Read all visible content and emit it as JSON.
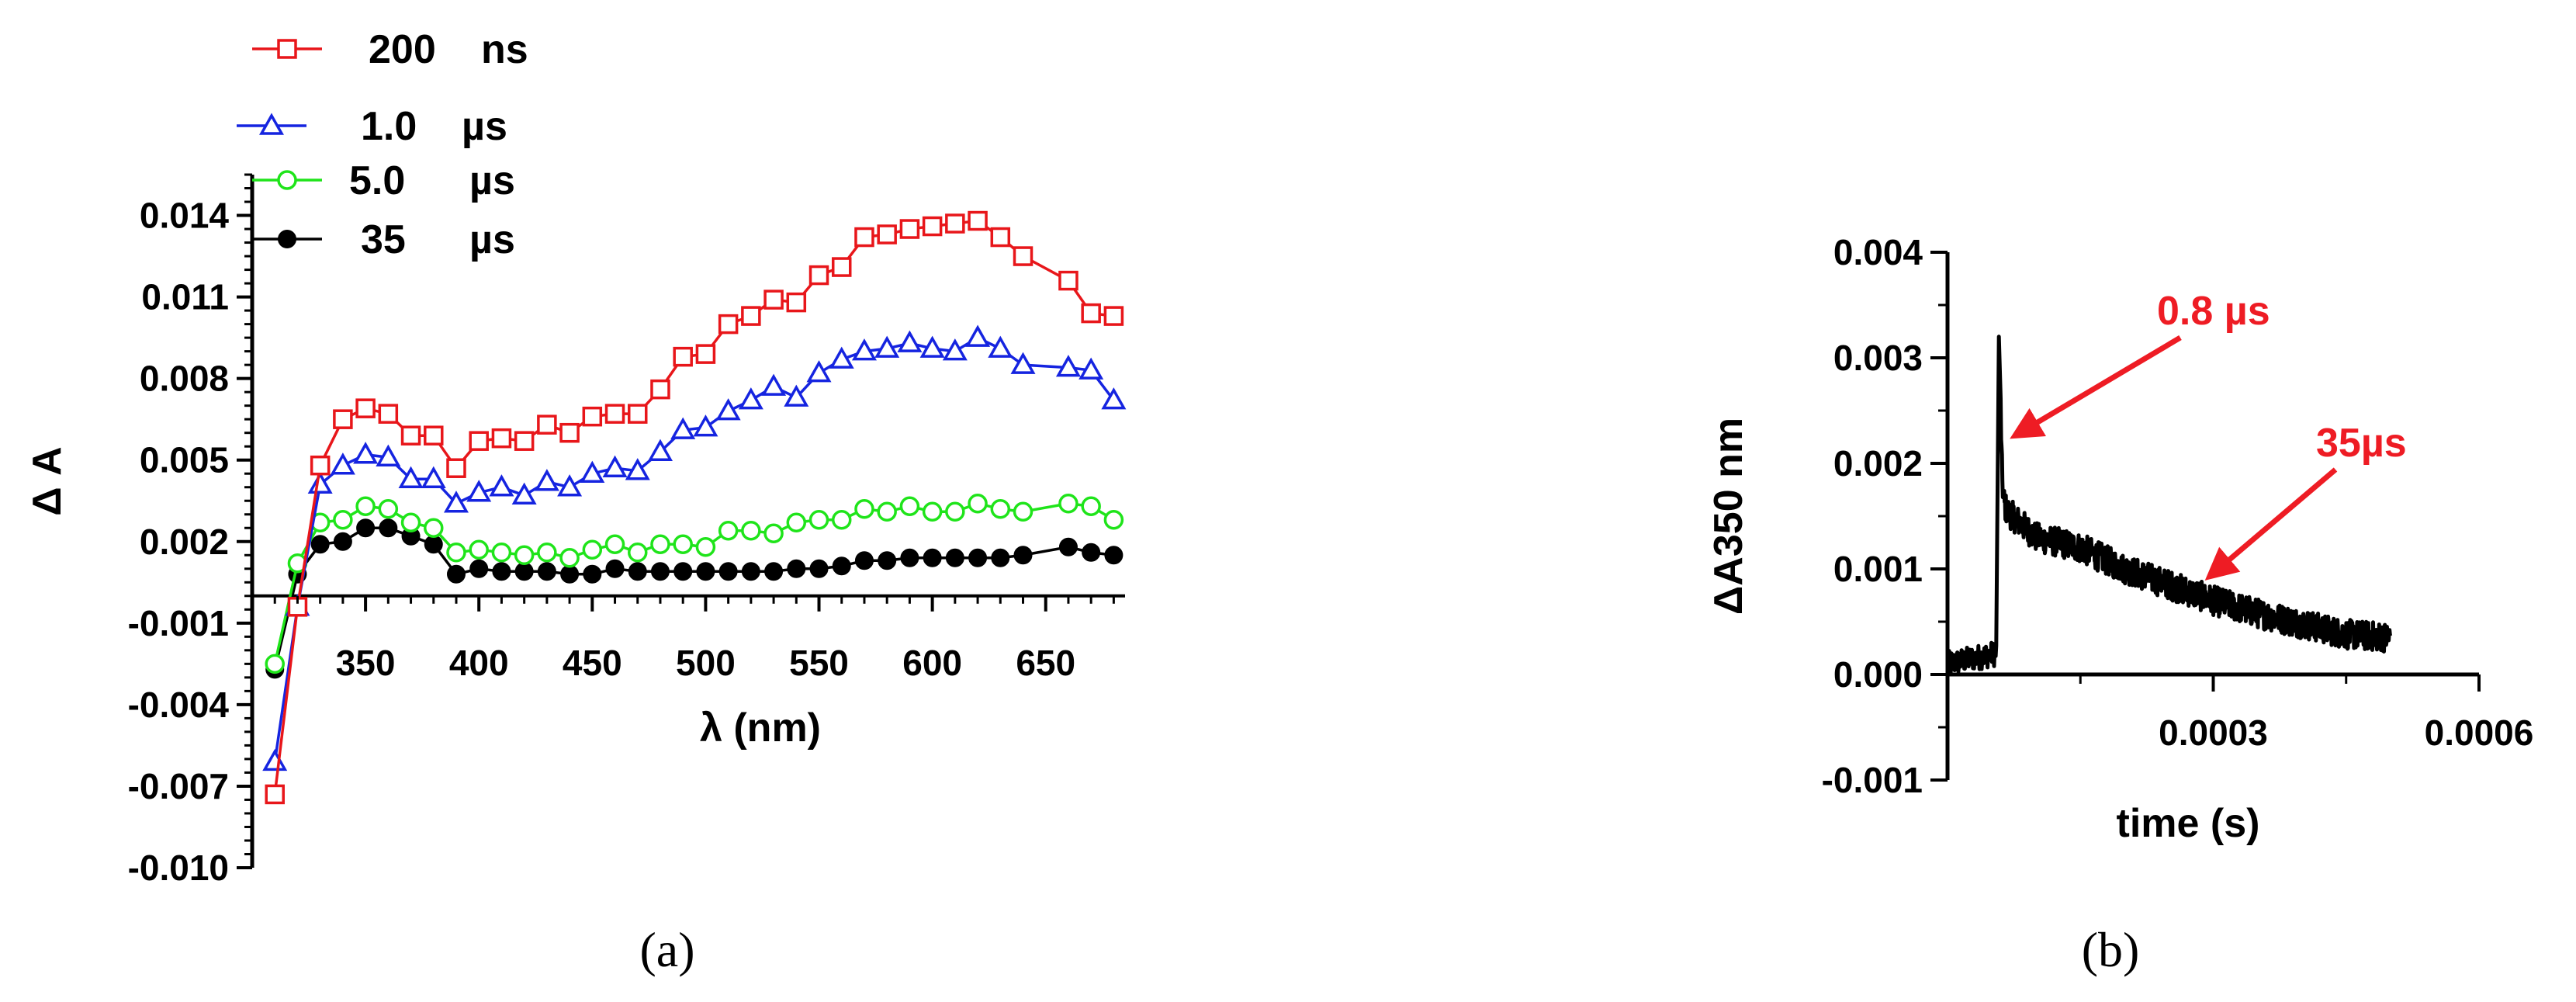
{
  "figure": {
    "panel_a_label": "(a)",
    "panel_b_label": "(b)"
  },
  "chart_data": [
    {
      "type": "line",
      "panel": "(a)",
      "xlabel": "λ (nm)",
      "ylabel": "Δ A",
      "xlim": [
        300,
        685
      ],
      "ylim": [
        -0.01,
        0.0155
      ],
      "xticks": [
        350,
        400,
        450,
        500,
        550,
        600,
        650
      ],
      "yticks": [
        -0.01,
        -0.007,
        -0.004,
        -0.001,
        0.002,
        0.005,
        0.008,
        0.011,
        0.014
      ],
      "ytick_labels": [
        "-0.010",
        "-0.007",
        "-0.004",
        "-0.001",
        "0.002",
        "0.005",
        "0.008",
        "0.011",
        "0.014"
      ],
      "legend_position": "top-left",
      "x": [
        310,
        320,
        330,
        340,
        350,
        360,
        370,
        380,
        390,
        400,
        410,
        420,
        430,
        440,
        450,
        460,
        470,
        480,
        490,
        500,
        510,
        520,
        530,
        540,
        550,
        560,
        570,
        580,
        590,
        600,
        610,
        620,
        630,
        640,
        660,
        670,
        680
      ],
      "series": [
        {
          "name": "200 ns",
          "label_value": "200",
          "label_unit": "ns",
          "color": "#e8161a",
          "marker": "square",
          "values": [
            -0.0073,
            -0.0004,
            0.0048,
            0.0065,
            0.0069,
            0.0067,
            0.0059,
            0.0059,
            0.0047,
            0.0057,
            0.0058,
            0.0057,
            0.0063,
            0.006,
            0.0066,
            0.0067,
            0.0067,
            0.0076,
            0.0088,
            0.0089,
            0.01,
            0.0103,
            0.0109,
            0.0108,
            0.0118,
            0.0121,
            0.0132,
            0.0133,
            0.0135,
            0.0136,
            0.0137,
            0.0138,
            0.0132,
            0.0125,
            0.0116,
            0.0104,
            0.0103
          ]
        },
        {
          "name": "1.0 µs",
          "label_value": "1.0",
          "label_unit": "µs",
          "color": "#1524e0",
          "marker": "triangle",
          "values": [
            -0.0061,
            -0.0004,
            0.0041,
            0.0048,
            0.0052,
            0.0051,
            0.0043,
            0.0043,
            0.0034,
            0.0038,
            0.004,
            0.0037,
            0.0042,
            0.004,
            0.0045,
            0.0047,
            0.0046,
            0.0053,
            0.0061,
            0.0062,
            0.0068,
            0.0072,
            0.0077,
            0.0073,
            0.0082,
            0.0087,
            0.009,
            0.0091,
            0.0093,
            0.0091,
            0.009,
            0.0095,
            0.0091,
            0.0085,
            0.0084,
            0.0083,
            0.0072
          ]
        },
        {
          "name": "5.0 µs",
          "label_value": "5.0",
          "label_unit": "µs",
          "color": "#1fe41a",
          "marker": "circle",
          "values": [
            -0.0025,
            0.0012,
            0.0027,
            0.0028,
            0.0033,
            0.0032,
            0.0027,
            0.0025,
            0.0016,
            0.0017,
            0.0016,
            0.0015,
            0.0016,
            0.0014,
            0.0017,
            0.0019,
            0.0016,
            0.0019,
            0.0019,
            0.0018,
            0.0024,
            0.0024,
            0.0023,
            0.0027,
            0.0028,
            0.0028,
            0.0032,
            0.0031,
            0.0033,
            0.0031,
            0.0031,
            0.0034,
            0.0032,
            0.0031,
            0.0034,
            0.0033,
            0.0028
          ]
        },
        {
          "name": "35 µs",
          "label_value": "35",
          "label_unit": "µs",
          "color": "#000000",
          "marker": "filled-circle",
          "values": [
            -0.0027,
            0.0008,
            0.0019,
            0.002,
            0.0025,
            0.0025,
            0.0022,
            0.0019,
            0.0008,
            0.001,
            0.0009,
            0.0009,
            0.0009,
            0.0008,
            0.0008,
            0.001,
            0.0009,
            0.0009,
            0.0009,
            0.0009,
            0.0009,
            0.0009,
            0.0009,
            0.001,
            0.001,
            0.0011,
            0.0013,
            0.0013,
            0.0014,
            0.0014,
            0.0014,
            0.0014,
            0.0014,
            0.0015,
            0.0018,
            0.0016,
            0.0015
          ]
        }
      ]
    },
    {
      "type": "scatter",
      "panel": "(b)",
      "xlabel": "time (s)",
      "ylabel": "ΔA350 nm",
      "xlim": [
        0,
        0.0006
      ],
      "ylim": [
        -0.001,
        0.004
      ],
      "xticks": [
        0.0003,
        0.0006
      ],
      "xtick_labels": [
        "0.0003",
        "0.0006"
      ],
      "yticks": [
        -0.001,
        0.0,
        0.001,
        0.002,
        0.003,
        0.004
      ],
      "ytick_labels": [
        "-0.001",
        "0.000",
        "0.001",
        "0.002",
        "0.003",
        "0.004"
      ],
      "color": "#000000",
      "trace": {
        "pre_trigger": {
          "x_range": [
            0.0,
            5.5e-05
          ],
          "level_start": 0.0001,
          "level_end": 0.0002,
          "noise": 0.00012
        },
        "spike": {
          "x": 5.8e-05,
          "peak": 0.0032
        },
        "decay": [
          {
            "x": 6e-05,
            "y": 0.0016
          },
          {
            "x": 0.0001,
            "y": 0.0013
          },
          {
            "x": 0.00015,
            "y": 0.0012
          },
          {
            "x": 0.0002,
            "y": 0.001
          },
          {
            "x": 0.00025,
            "y": 0.00085
          },
          {
            "x": 0.0003,
            "y": 0.0007
          },
          {
            "x": 0.00035,
            "y": 0.00058
          },
          {
            "x": 0.0004,
            "y": 0.00048
          },
          {
            "x": 0.00045,
            "y": 0.00038
          },
          {
            "x": 0.0005,
            "y": 0.00035
          }
        ],
        "noise": 0.00014
      },
      "annotations": [
        {
          "text": "0.8 µs",
          "color": "#ee1c24",
          "point": [
            6.5e-05,
            0.0022
          ]
        },
        {
          "text": "35µs",
          "color": "#ee1c24",
          "point": [
            0.00029,
            0.00088
          ]
        }
      ]
    }
  ]
}
